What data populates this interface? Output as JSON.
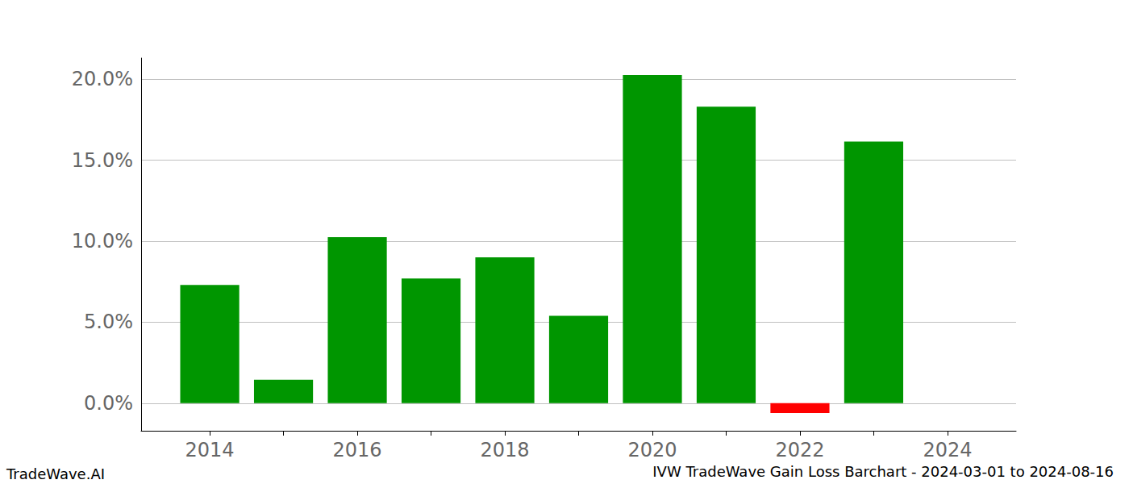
{
  "chart_data": {
    "type": "bar",
    "title": "IVW TradeWave Gain Loss Barchart - 2024-03-01 to 2024-08-16",
    "annotations": [
      "TradeWave.AI"
    ],
    "x": [
      2014,
      2015,
      2016,
      2017,
      2018,
      2019,
      2020,
      2021,
      2022,
      2023
    ],
    "values": [
      7.3,
      1.45,
      10.25,
      7.7,
      9.0,
      5.4,
      20.25,
      18.3,
      -0.6,
      16.15
    ],
    "colors": [
      "#009600",
      "#009600",
      "#009600",
      "#009600",
      "#009600",
      "#009600",
      "#009600",
      "#009600",
      "#ff0000",
      "#009600"
    ],
    "xlim": [
      2013.07,
      2024.93
    ],
    "xticks": [
      2014,
      2016,
      2018,
      2020,
      2022,
      2024
    ],
    "ylim": [
      -1.7,
      21.3
    ],
    "yticks": [
      {
        "value": 0,
        "label": "0.0%"
      },
      {
        "value": 5,
        "label": "5.0%"
      },
      {
        "value": 10,
        "label": "10.0%"
      },
      {
        "value": 15,
        "label": "15.0%"
      },
      {
        "value": 20,
        "label": "20.0%"
      }
    ],
    "grid": true
  }
}
